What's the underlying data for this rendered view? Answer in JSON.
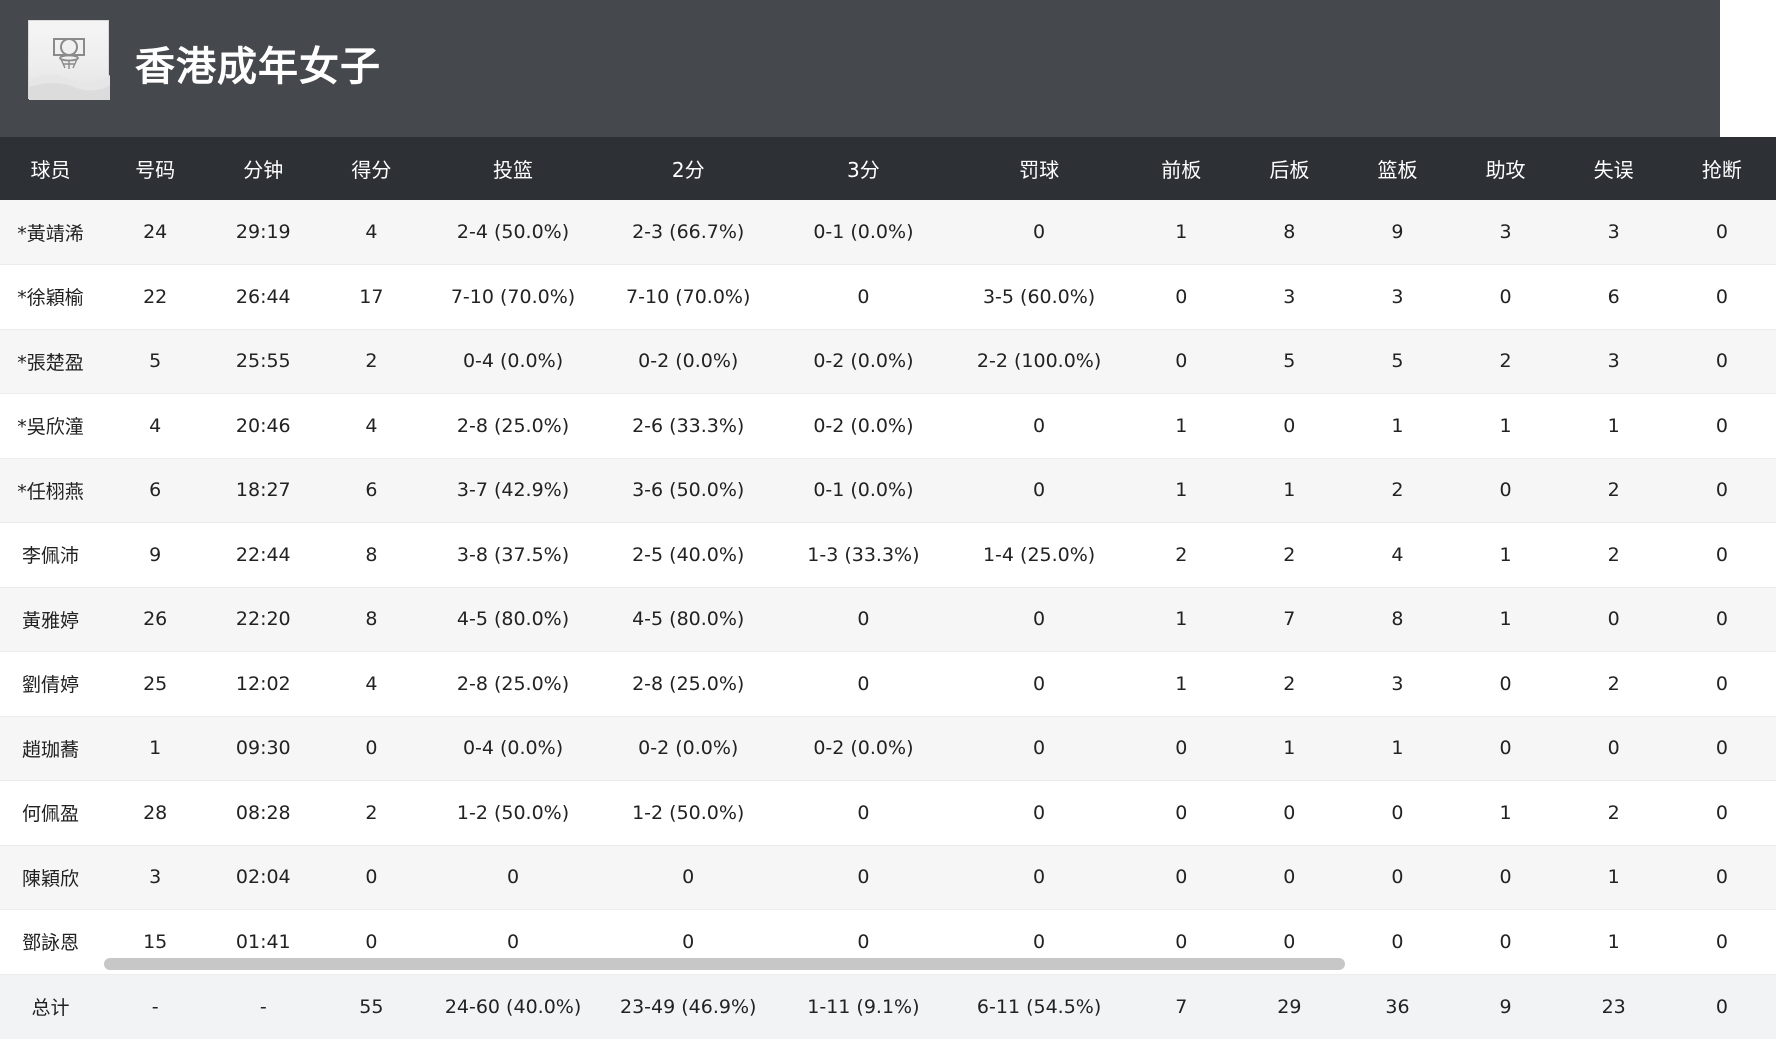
{
  "team": {
    "name": "香港成年女子",
    "logo_icon": "basketball-hoop-icon"
  },
  "columns": [
    "球员",
    "号码",
    "分钟",
    "得分",
    "投篮",
    "2分",
    "3分",
    "罚球",
    "前板",
    "后板",
    "篮板",
    "助攻",
    "失误",
    "抢断"
  ],
  "rows": [
    [
      "*黃靖浠",
      "24",
      "29:19",
      "4",
      "2-4 (50.0%)",
      "2-3 (66.7%)",
      "0-1 (0.0%)",
      "0",
      "1",
      "8",
      "9",
      "3",
      "3",
      "0"
    ],
    [
      "*徐穎榆",
      "22",
      "26:44",
      "17",
      "7-10 (70.0%)",
      "7-10 (70.0%)",
      "0",
      "3-5 (60.0%)",
      "0",
      "3",
      "3",
      "0",
      "6",
      "0"
    ],
    [
      "*張楚盈",
      "5",
      "25:55",
      "2",
      "0-4 (0.0%)",
      "0-2 (0.0%)",
      "0-2 (0.0%)",
      "2-2 (100.0%)",
      "0",
      "5",
      "5",
      "2",
      "3",
      "0"
    ],
    [
      "*吳欣潼",
      "4",
      "20:46",
      "4",
      "2-8 (25.0%)",
      "2-6 (33.3%)",
      "0-2 (0.0%)",
      "0",
      "1",
      "0",
      "1",
      "1",
      "1",
      "0"
    ],
    [
      "*任栩燕",
      "6",
      "18:27",
      "6",
      "3-7 (42.9%)",
      "3-6 (50.0%)",
      "0-1 (0.0%)",
      "0",
      "1",
      "1",
      "2",
      "0",
      "2",
      "0"
    ],
    [
      "李佩沛",
      "9",
      "22:44",
      "8",
      "3-8 (37.5%)",
      "2-5 (40.0%)",
      "1-3 (33.3%)",
      "1-4 (25.0%)",
      "2",
      "2",
      "4",
      "1",
      "2",
      "0"
    ],
    [
      "黃雅婷",
      "26",
      "22:20",
      "8",
      "4-5 (80.0%)",
      "4-5 (80.0%)",
      "0",
      "0",
      "1",
      "7",
      "8",
      "1",
      "0",
      "0"
    ],
    [
      "劉倩婷",
      "25",
      "12:02",
      "4",
      "2-8 (25.0%)",
      "2-8 (25.0%)",
      "0",
      "0",
      "1",
      "2",
      "3",
      "0",
      "2",
      "0"
    ],
    [
      "趙珈蕎",
      "1",
      "09:30",
      "0",
      "0-4 (0.0%)",
      "0-2 (0.0%)",
      "0-2 (0.0%)",
      "0",
      "0",
      "1",
      "1",
      "0",
      "0",
      "0"
    ],
    [
      "何佩盈",
      "28",
      "08:28",
      "2",
      "1-2 (50.0%)",
      "1-2 (50.0%)",
      "0",
      "0",
      "0",
      "0",
      "0",
      "1",
      "2",
      "0"
    ],
    [
      "陳穎欣",
      "3",
      "02:04",
      "0",
      "0",
      "0",
      "0",
      "0",
      "0",
      "0",
      "0",
      "0",
      "1",
      "0"
    ],
    [
      "鄧詠恩",
      "15",
      "01:41",
      "0",
      "0",
      "0",
      "0",
      "0",
      "0",
      "0",
      "0",
      "0",
      "1",
      "0"
    ]
  ],
  "totals": [
    "总计",
    "-",
    "-",
    "55",
    "24-60 (40.0%)",
    "23-49 (46.9%)",
    "1-11 (9.1%)",
    "6-11 (54.5%)",
    "7",
    "29",
    "36",
    "9",
    "23",
    "0"
  ],
  "colors": {
    "header_bg": "#45484c",
    "table_head_bg": "#2d3035",
    "row_alt_bg": "#f6f6f6",
    "total_bg": "#f1f3f5"
  }
}
